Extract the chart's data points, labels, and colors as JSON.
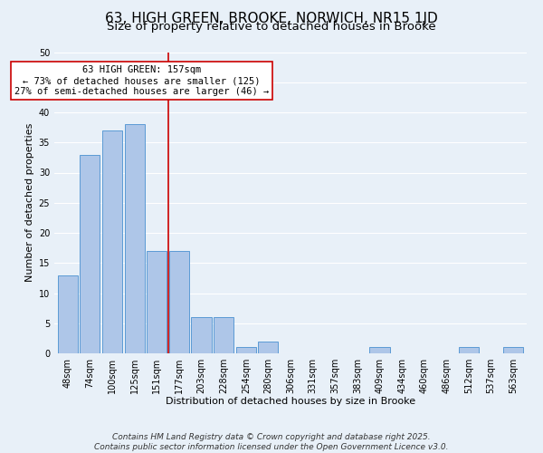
{
  "title": "63, HIGH GREEN, BROOKE, NORWICH, NR15 1JD",
  "subtitle": "Size of property relative to detached houses in Brooke",
  "xlabel": "Distribution of detached houses by size in Brooke",
  "ylabel": "Number of detached properties",
  "bar_labels": [
    "48sqm",
    "74sqm",
    "100sqm",
    "125sqm",
    "151sqm",
    "177sqm",
    "203sqm",
    "228sqm",
    "254sqm",
    "280sqm",
    "306sqm",
    "331sqm",
    "357sqm",
    "383sqm",
    "409sqm",
    "434sqm",
    "460sqm",
    "486sqm",
    "512sqm",
    "537sqm",
    "563sqm"
  ],
  "bar_values": [
    13,
    33,
    37,
    38,
    17,
    17,
    6,
    6,
    1,
    2,
    0,
    0,
    0,
    0,
    1,
    0,
    0,
    0,
    1,
    0,
    1
  ],
  "bar_color": "#aec6e8",
  "bar_edge_color": "#5b9bd5",
  "vline_x": 4.5,
  "vline_color": "#cc0000",
  "annotation_line1": "63 HIGH GREEN: 157sqm",
  "annotation_line2": "← 73% of detached houses are smaller (125)",
  "annotation_line3": "27% of semi-detached houses are larger (46) →",
  "annotation_box_color": "#ffffff",
  "annotation_box_edge": "#cc0000",
  "ylim": [
    0,
    50
  ],
  "yticks": [
    0,
    5,
    10,
    15,
    20,
    25,
    30,
    35,
    40,
    45,
    50
  ],
  "background_color": "#e8f0f8",
  "footer_line1": "Contains HM Land Registry data © Crown copyright and database right 2025.",
  "footer_line2": "Contains public sector information licensed under the Open Government Licence v3.0.",
  "title_fontsize": 11,
  "subtitle_fontsize": 9.5,
  "axis_label_fontsize": 8,
  "tick_fontsize": 7,
  "annotation_fontsize": 7.5,
  "footer_fontsize": 6.5
}
